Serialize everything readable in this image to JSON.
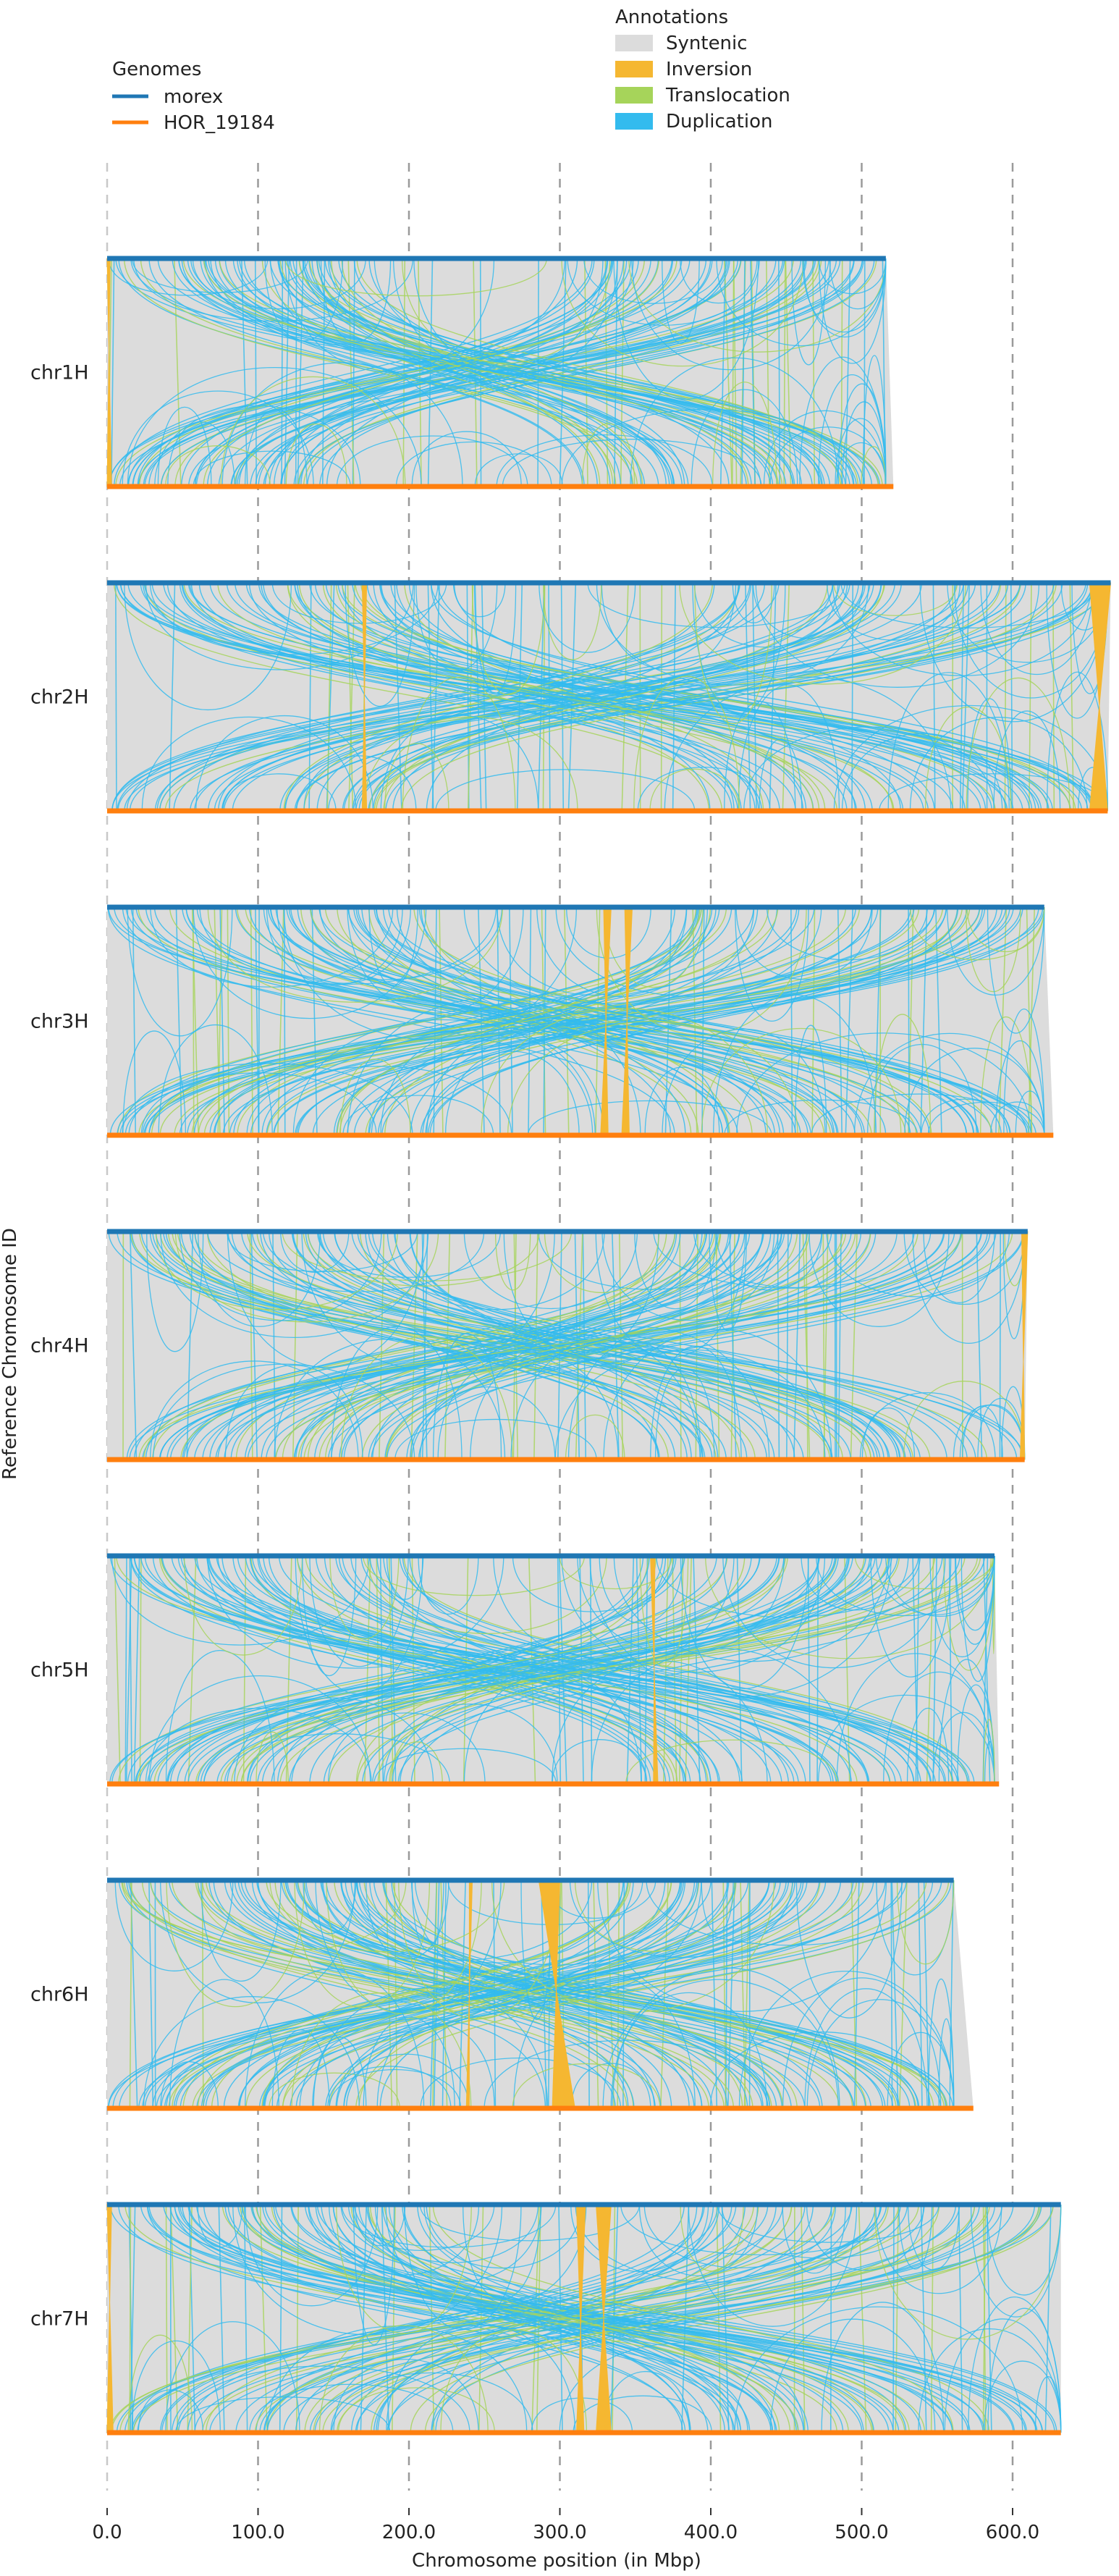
{
  "chart_data": {
    "type": "synteny",
    "xlabel": "Chromosome position (in Mbp)",
    "ylabel": "Reference Chromosome ID",
    "x_ticks": [
      0.0,
      100.0,
      200.0,
      300.0,
      400.0,
      500.0,
      600.0
    ],
    "x_tick_labels": [
      "0.0",
      "100.0",
      "200.0",
      "300.0",
      "400.0",
      "500.0",
      "600.0"
    ],
    "xlim": [
      0,
      660
    ],
    "grid": "vertical dashed",
    "legends": {
      "genomes": {
        "title": "Genomes",
        "placement": "top-left",
        "items": [
          {
            "label": "morex",
            "color": "#1f77b4"
          },
          {
            "label": "HOR_19184",
            "color": "#ff7f0e"
          }
        ]
      },
      "annotations": {
        "title": "Annotations",
        "placement": "top-center",
        "items": [
          {
            "label": "Syntenic",
            "color": "#dcdcdc"
          },
          {
            "label": "Inversion",
            "color": "#f5b731"
          },
          {
            "label": "Translocation",
            "color": "#a6d45a"
          },
          {
            "label": "Duplication",
            "color": "#33bbee"
          }
        ]
      }
    },
    "chromosomes": [
      {
        "name": "chr1H",
        "reference_length": 516,
        "query_length": 521,
        "inversions": [
          [
            0,
            2,
            0,
            3
          ]
        ]
      },
      {
        "name": "chr2H",
        "reference_length": 665,
        "query_length": 663,
        "inversions": [
          [
            169,
            172,
            169,
            172
          ],
          [
            651,
            665,
            651,
            663
          ]
        ]
      },
      {
        "name": "chr3H",
        "reference_length": 621,
        "query_length": 627,
        "inversions": [
          [
            329,
            334,
            327,
            332
          ],
          [
            343,
            348,
            341,
            346
          ]
        ]
      },
      {
        "name": "chr4H",
        "reference_length": 610,
        "query_length": 608,
        "inversions": [
          [
            606,
            610,
            605,
            608
          ]
        ]
      },
      {
        "name": "chr5H",
        "reference_length": 588,
        "query_length": 591,
        "inversions": [
          [
            360,
            363,
            362,
            365
          ]
        ]
      },
      {
        "name": "chr6H",
        "reference_length": 561,
        "query_length": 574,
        "inversions": [
          [
            286,
            300,
            295,
            310
          ],
          [
            240,
            242,
            238,
            240
          ]
        ]
      },
      {
        "name": "chr7H",
        "reference_length": 632,
        "query_length": 632,
        "inversions": [
          [
            0,
            3,
            0,
            4
          ],
          [
            311,
            317,
            311,
            316
          ],
          [
            324,
            334,
            324,
            334
          ]
        ]
      }
    ]
  }
}
